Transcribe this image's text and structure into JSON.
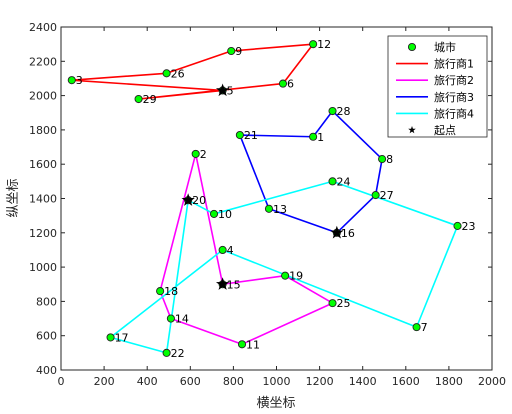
{
  "chart_data": {
    "type": "scatter",
    "title": "",
    "xlabel": "横坐标",
    "ylabel": "纵坐标",
    "xlim": [
      0,
      2000
    ],
    "ylim": [
      400,
      2400
    ],
    "xticks": [
      0,
      200,
      400,
      600,
      800,
      1000,
      1200,
      1400,
      1600,
      1800,
      2000
    ],
    "yticks": [
      400,
      600,
      800,
      1000,
      1200,
      1400,
      1600,
      1800,
      2000,
      2200,
      2400
    ],
    "grid": false,
    "legend_position": "top-right",
    "city_series_name": "城市",
    "city_color": "#00ff00",
    "start_series_name": "起点",
    "cities": [
      {
        "id": "1",
        "x": 1170,
        "y": 1760
      },
      {
        "id": "2",
        "x": 625,
        "y": 1660
      },
      {
        "id": "3",
        "x": 50,
        "y": 2090
      },
      {
        "id": "4",
        "x": 750,
        "y": 1100
      },
      {
        "id": "5",
        "x": 750,
        "y": 2030
      },
      {
        "id": "6",
        "x": 1030,
        "y": 2070
      },
      {
        "id": "7",
        "x": 1650,
        "y": 650
      },
      {
        "id": "8",
        "x": 1490,
        "y": 1630
      },
      {
        "id": "9",
        "x": 790,
        "y": 2260
      },
      {
        "id": "10",
        "x": 710,
        "y": 1310
      },
      {
        "id": "11",
        "x": 840,
        "y": 550
      },
      {
        "id": "12",
        "x": 1170,
        "y": 2300
      },
      {
        "id": "13",
        "x": 965,
        "y": 1340
      },
      {
        "id": "14",
        "x": 510,
        "y": 700
      },
      {
        "id": "15",
        "x": 750,
        "y": 900
      },
      {
        "id": "16",
        "x": 1280,
        "y": 1200
      },
      {
        "id": "17",
        "x": 230,
        "y": 590
      },
      {
        "id": "18",
        "x": 460,
        "y": 860
      },
      {
        "id": "19",
        "x": 1040,
        "y": 950
      },
      {
        "id": "20",
        "x": 590,
        "y": 1390
      },
      {
        "id": "21",
        "x": 830,
        "y": 1770
      },
      {
        "id": "22",
        "x": 490,
        "y": 500
      },
      {
        "id": "23",
        "x": 1840,
        "y": 1240
      },
      {
        "id": "24",
        "x": 1260,
        "y": 1500
      },
      {
        "id": "25",
        "x": 1260,
        "y": 790
      },
      {
        "id": "26",
        "x": 490,
        "y": 2130
      },
      {
        "id": "27",
        "x": 1460,
        "y": 1420
      },
      {
        "id": "28",
        "x": 1260,
        "y": 1910
      },
      {
        "id": "29",
        "x": 360,
        "y": 1980
      }
    ],
    "series": [
      {
        "name": "旅行商1",
        "color": "#ff0000",
        "start": "5",
        "route": [
          "5",
          "3",
          "26",
          "9",
          "12",
          "6",
          "29",
          "5"
        ]
      },
      {
        "name": "旅行商2",
        "color": "#ff00ff",
        "start": "15",
        "route": [
          "15",
          "2",
          "18",
          "14",
          "11",
          "25",
          "19",
          "15"
        ]
      },
      {
        "name": "旅行商3",
        "color": "#0000ff",
        "start": "16",
        "route": [
          "16",
          "27",
          "8",
          "28",
          "1",
          "21",
          "13",
          "16"
        ]
      },
      {
        "name": "旅行商4",
        "color": "#00ffff",
        "start": "20",
        "route": [
          "20",
          "10",
          "24",
          "23",
          "7",
          "4",
          "17",
          "22",
          "20"
        ]
      }
    ]
  }
}
